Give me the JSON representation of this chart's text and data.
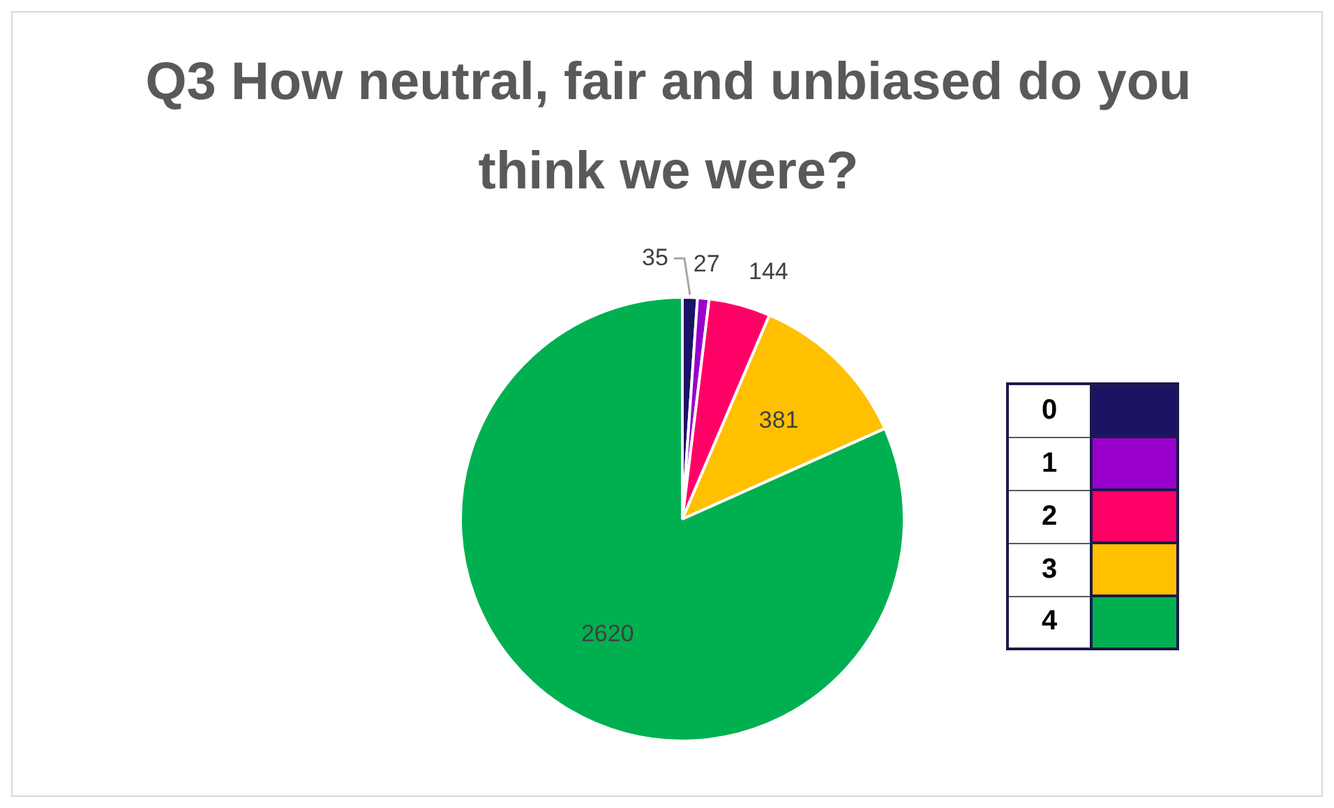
{
  "chart_data": {
    "type": "pie",
    "title": "Q3 How neutral, fair and unbiased do you think we were?",
    "categories": [
      "0",
      "1",
      "2",
      "3",
      "4"
    ],
    "values": [
      35,
      27,
      144,
      381,
      2620
    ],
    "colors": [
      "#1b1464",
      "#9900cc",
      "#ff0066",
      "#ffc000",
      "#00b050"
    ],
    "data_labels": true,
    "legend": "right"
  }
}
